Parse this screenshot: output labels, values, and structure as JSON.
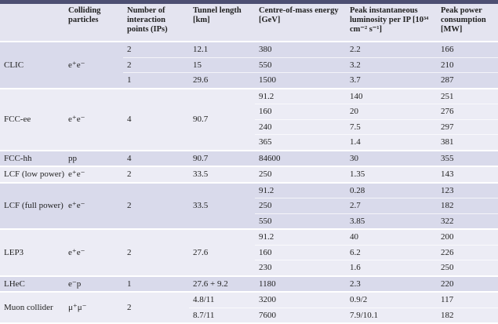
{
  "header": {
    "columns": [
      "Colliding particles",
      "Number of interaction points (IPs)",
      "Tunnel length [km]",
      "Centre-of-mass energy [GeV]",
      "Peak instantaneous luminosity per IP [10³⁴ cm⁻² s⁻¹]",
      "Peak power consumption [MW]"
    ]
  },
  "table": {
    "groups": [
      {
        "cells": [
          "CLIC",
          "e⁺e⁻",
          [
            "2",
            "2",
            "1"
          ],
          [
            "12.1",
            "15",
            "29.6"
          ],
          [
            "380",
            "550",
            "1500"
          ],
          [
            "2.2",
            "3.2",
            "3.7"
          ],
          [
            "166",
            "210",
            "287"
          ]
        ]
      },
      {
        "cells": [
          "FCC-ee",
          "e⁺e⁻",
          "4",
          "90.7",
          [
            "91.2",
            "160",
            "240",
            "365"
          ],
          [
            "140",
            "20",
            "7.5",
            "1.4"
          ],
          [
            "251",
            "276",
            "297",
            "381"
          ]
        ]
      },
      {
        "cells": [
          "FCC-hh",
          "pp",
          "4",
          "90.7",
          "84600",
          "30",
          "355"
        ]
      },
      {
        "cells": [
          "LCF (low power)",
          "e⁺e⁻",
          "2",
          "33.5",
          "250",
          "1.35",
          "143"
        ]
      },
      {
        "cells": [
          "LCF (full power)",
          "e⁺e⁻",
          "2",
          "33.5",
          [
            "91.2",
            "250",
            "550"
          ],
          [
            "0.28",
            "2.7",
            "3.85"
          ],
          [
            "123",
            "182",
            "322"
          ]
        ]
      },
      {
        "cells": [
          "LEP3",
          "e⁺e⁻",
          "2",
          "27.6",
          [
            "91.2",
            "160",
            "230"
          ],
          [
            "40",
            "6.2",
            "1.6"
          ],
          [
            "200",
            "226",
            "250"
          ]
        ]
      },
      {
        "cells": [
          "LHeC",
          "e⁻p",
          "1",
          "27.6 + 9.2",
          "1180",
          "2.3",
          "220"
        ]
      },
      {
        "cells": [
          "Muon collider",
          "μ⁺μ⁻",
          "2",
          [
            "4.8/11",
            "8.7/11"
          ],
          [
            "3200",
            "7600"
          ],
          [
            "0.9/2",
            "7.9/10.1"
          ],
          [
            "117",
            "182"
          ]
        ]
      }
    ]
  }
}
